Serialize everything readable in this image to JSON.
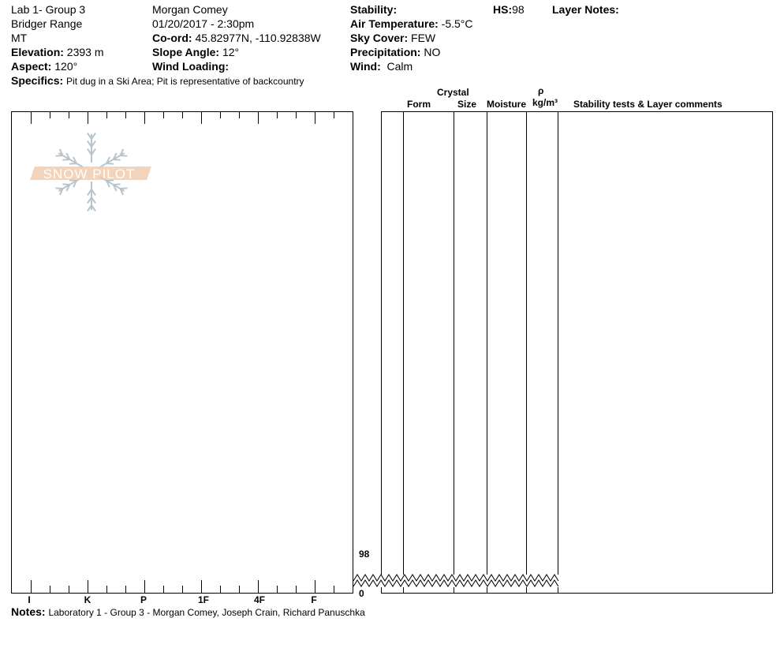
{
  "header": {
    "title": "Lab 1- Group 3",
    "range": "Bridger Range",
    "state": "MT",
    "elevation_label": "Elevation:",
    "elevation": "2393 m",
    "aspect_label": "Aspect:",
    "aspect": "120°",
    "observer": "Morgan Comey",
    "datetime": "01/20/2017 - 2:30pm",
    "coord_label": "Co-ord:",
    "coord": "45.82977N, -110.92838W",
    "slope_label": "Slope Angle:",
    "slope": "12°",
    "wind_loading_label": "Wind Loading:",
    "stability_label": "Stability:",
    "air_temp_label": "Air Temperature:",
    "air_temp": "-5.5°C",
    "sky_label": "Sky Cover:",
    "sky": "FEW",
    "precip_label": "Precipitation:",
    "precip": "NO",
    "wind_label": "Wind:",
    "wind": "Calm",
    "hs_label": "HS:",
    "hs": "98",
    "layer_notes_label": "Layer Notes:",
    "specifics_label": "Specifics:",
    "specifics": "Pit dug in a Ski Area; Pit is representative of backcountry"
  },
  "columns": {
    "crystal": "Crystal",
    "form": "Form",
    "size": "Size",
    "moisture": "Moisture",
    "rho": "ρ",
    "density_unit": "kg/m³",
    "comments": "Stability tests & Layer comments"
  },
  "depth_axis": {
    "top": "98",
    "bottom": "0"
  },
  "hardness_axis": [
    "I",
    "K",
    "P",
    "1F",
    "4F",
    "F"
  ],
  "logo": {
    "text": "SNOW PILOT",
    "color": "#f0c8a8",
    "flake_color": "#b8c4cc"
  },
  "notes_label": "Notes:",
  "notes": "Laboratory 1 - Group 3 - Morgan Comey, Joseph Crain, Richard Panuschka"
}
